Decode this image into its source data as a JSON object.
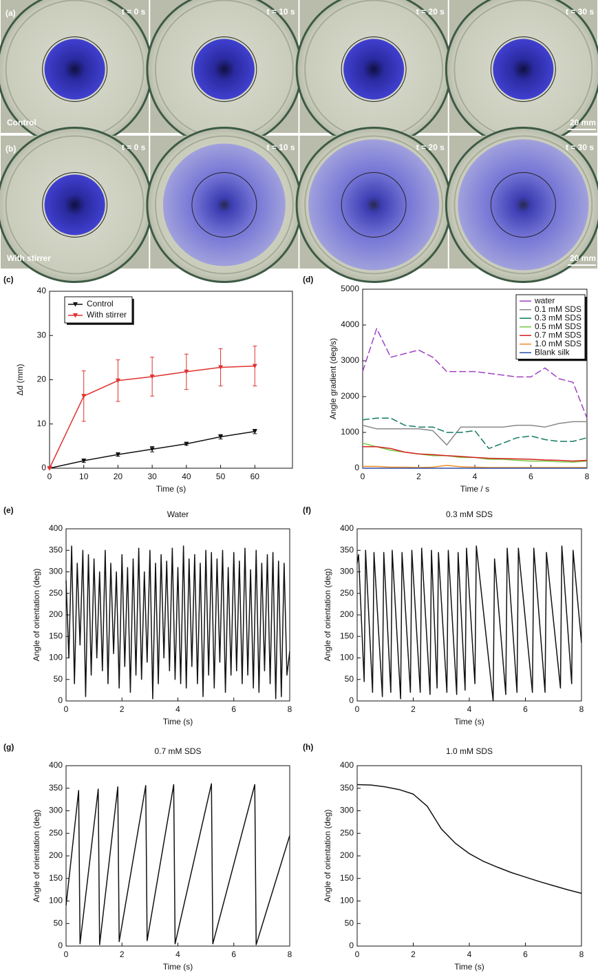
{
  "photos": {
    "rows": [
      {
        "label": "(a)",
        "name": "Control",
        "times": [
          "t = 0 s",
          "t = 10 s",
          "t = 20 s",
          "t = 30 s"
        ],
        "scale_bar": "20 mm"
      },
      {
        "label": "(b)",
        "name": "With stirrer",
        "times": [
          "t = 0 s",
          "t = 10 s",
          "t = 20 s",
          "t = 30 s"
        ],
        "scale_bar": "20 mm"
      }
    ]
  },
  "chart_data": [
    {
      "type": "line",
      "panel_label": "(c)",
      "xlabel": "Time (s)",
      "ylabel": "Δd (mm)",
      "x": [
        0,
        10,
        20,
        30,
        40,
        50,
        60
      ],
      "xlim": [
        0,
        71
      ],
      "xticks": [
        0,
        10,
        20,
        30,
        40,
        50,
        60
      ],
      "ylim": [
        0,
        40
      ],
      "yticks": [
        0,
        10,
        20,
        30,
        40
      ],
      "legend": "upper left",
      "series": [
        {
          "name": "Control",
          "color": "#111111",
          "marker": "triangle-down",
          "values": [
            0,
            1.7,
            3.1,
            4.3,
            5.5,
            7.1,
            8.3
          ],
          "errors": [
            0,
            0.4,
            0.4,
            0.6,
            0.3,
            0.5,
            0.5
          ]
        },
        {
          "name": "With stirrer",
          "color": "#e03030",
          "marker": "triangle-down",
          "values": [
            0,
            16.3,
            19.8,
            20.7,
            21.8,
            22.8,
            23.1
          ],
          "errors": [
            0,
            5.7,
            4.7,
            4.4,
            4.0,
            4.2,
            4.5
          ]
        }
      ]
    },
    {
      "type": "line",
      "panel_label": "(d)",
      "xlabel": "Time / s",
      "ylabel": "Angle gradient (deg/s)",
      "x": [
        0,
        0.5,
        1,
        1.5,
        2,
        2.5,
        3,
        3.5,
        4,
        4.5,
        5,
        5.5,
        6,
        6.5,
        7,
        7.5,
        8
      ],
      "xlim": [
        0,
        8
      ],
      "xticks": [
        0,
        2,
        4,
        6,
        8
      ],
      "ylim": [
        0,
        5000
      ],
      "yticks": [
        0,
        1000,
        2000,
        3000,
        4000,
        5000
      ],
      "legend": "upper right",
      "series": [
        {
          "name": "water",
          "color": "#a040c0",
          "dashed": true,
          "values": [
            2700,
            3900,
            3100,
            3200,
            3300,
            3100,
            2700,
            2700,
            2700,
            2650,
            2600,
            2550,
            2550,
            2800,
            2500,
            2400,
            1400
          ]
        },
        {
          "name": "0.1 mM SDS",
          "color": "#888888",
          "values": [
            1200,
            1100,
            1100,
            1100,
            1100,
            1050,
            650,
            1150,
            1150,
            1150,
            1150,
            1200,
            1200,
            1150,
            1250,
            1300,
            1300
          ]
        },
        {
          "name": "0.3 mM SDS",
          "color": "#137a63",
          "dashed": true,
          "values": [
            1350,
            1400,
            1400,
            1200,
            1150,
            1150,
            1000,
            1000,
            1050,
            550,
            700,
            850,
            900,
            800,
            750,
            750,
            850
          ]
        },
        {
          "name": "0.5 mM SDS",
          "color": "#7ac943",
          "values": [
            700,
            600,
            500,
            450,
            400,
            350,
            350,
            300,
            300,
            250,
            250,
            220,
            200,
            200,
            180,
            170,
            200
          ]
        },
        {
          "name": "0.7 mM SDS",
          "color": "#d42020",
          "values": [
            600,
            600,
            550,
            450,
            400,
            380,
            350,
            330,
            300,
            280,
            270,
            260,
            250,
            230,
            220,
            200,
            220
          ]
        },
        {
          "name": "1.0 mM SDS",
          "color": "#f08a24",
          "values": [
            50,
            50,
            30,
            30,
            20,
            30,
            80,
            40,
            30,
            20,
            20,
            20,
            20,
            20,
            20,
            20,
            20
          ]
        },
        {
          "name": "Blank silk",
          "color": "#2b4fa8",
          "values": [
            0,
            0,
            0,
            0,
            0,
            0,
            0,
            0,
            0,
            0,
            0,
            0,
            0,
            0,
            0,
            0,
            0
          ]
        }
      ]
    },
    {
      "type": "line",
      "panel_label": "(e)",
      "title": "Water",
      "xlabel": "Time (s)",
      "ylabel": "Angle of orientation (deg)",
      "x": [
        0,
        0.1,
        0.2,
        0.3,
        0.4,
        0.5,
        0.6,
        0.7,
        0.8,
        0.9,
        1,
        1.1,
        1.2,
        1.3,
        1.4,
        1.5,
        1.6,
        1.7,
        1.8,
        1.9,
        2,
        2.1,
        2.2,
        2.3,
        2.4,
        2.5,
        2.6,
        2.7,
        2.8,
        2.9,
        3,
        3.1,
        3.2,
        3.3,
        3.4,
        3.5,
        3.6,
        3.7,
        3.8,
        3.9,
        4,
        4.1,
        4.2,
        4.3,
        4.4,
        4.5,
        4.6,
        4.7,
        4.8,
        4.9,
        5,
        5.1,
        5.2,
        5.3,
        5.4,
        5.5,
        5.6,
        5.7,
        5.8,
        5.9,
        6,
        6.1,
        6.2,
        6.3,
        6.4,
        6.5,
        6.6,
        6.7,
        6.8,
        6.9,
        7,
        7.1,
        7.2,
        7.3,
        7.4,
        7.5,
        7.6,
        7.7,
        7.8,
        7.9,
        8
      ],
      "xlim": [
        0,
        8
      ],
      "xticks": [
        0,
        2,
        4,
        6,
        8
      ],
      "ylim": [
        0,
        400
      ],
      "yticks": [
        0,
        50,
        100,
        150,
        200,
        250,
        300,
        350,
        400
      ],
      "series": [
        {
          "color": "#111111",
          "values": [
            280,
            100,
            360,
            40,
            320,
            130,
            350,
            10,
            340,
            60,
            330,
            100,
            300,
            70,
            350,
            40,
            320,
            110,
            300,
            30,
            340,
            80,
            310,
            20,
            330,
            60,
            355,
            50,
            300,
            90,
            350,
            5,
            320,
            40,
            340,
            100,
            325,
            70,
            355,
            50,
            310,
            40,
            360,
            30,
            330,
            80,
            340,
            40,
            320,
            10,
            350,
            60,
            345,
            30,
            330,
            90,
            350,
            20,
            310,
            60,
            345,
            70,
            325,
            40,
            355,
            60,
            305,
            30,
            350,
            20,
            320,
            70,
            340,
            40,
            345,
            5,
            325,
            10,
            320,
            60,
            115
          ]
        }
      ]
    },
    {
      "type": "line",
      "panel_label": "(f)",
      "title": "0.3 mM SDS",
      "xlabel": "Time (s)",
      "ylabel": "Angle of orientation (deg)",
      "x": [
        0,
        0.05,
        0.25,
        0.3,
        0.55,
        0.6,
        0.9,
        0.95,
        1.2,
        1.25,
        1.55,
        1.6,
        1.9,
        1.95,
        2.25,
        2.3,
        2.6,
        2.65,
        2.85,
        2.9,
        3.2,
        3.25,
        3.55,
        3.6,
        3.85,
        3.9,
        4.2,
        4.25,
        4.85,
        4.9,
        5.3,
        5.35,
        5.7,
        5.75,
        6.25,
        6.3,
        6.7,
        6.75,
        7.25,
        7.3,
        7.65,
        7.7,
        8
      ],
      "xlim": [
        0,
        8
      ],
      "xticks": [
        0,
        2,
        4,
        6,
        8
      ],
      "ylim": [
        0,
        400
      ],
      "yticks": [
        0,
        50,
        100,
        150,
        200,
        250,
        300,
        350,
        400
      ],
      "series": [
        {
          "color": "#111111",
          "values": [
            320,
            340,
            45,
            350,
            20,
            345,
            10,
            345,
            20,
            350,
            5,
            345,
            20,
            350,
            20,
            355,
            15,
            350,
            30,
            345,
            20,
            350,
            15,
            345,
            25,
            355,
            40,
            360,
            0,
            330,
            15,
            355,
            20,
            355,
            20,
            355,
            20,
            345,
            30,
            360,
            40,
            350,
            135
          ]
        }
      ]
    },
    {
      "type": "line",
      "panel_label": "(g)",
      "title": "0.7 mM SDS",
      "xlabel": "Time (s)",
      "ylabel": "Angle of orientation (deg)",
      "x": [
        0,
        0.45,
        0.5,
        1.15,
        1.2,
        1.85,
        1.9,
        2.85,
        2.9,
        3.85,
        3.9,
        5.2,
        5.25,
        6.75,
        6.8,
        8
      ],
      "xlim": [
        0,
        8
      ],
      "xticks": [
        0,
        2,
        4,
        6,
        8
      ],
      "ylim": [
        0,
        400
      ],
      "yticks": [
        0,
        50,
        100,
        150,
        200,
        250,
        300,
        350,
        400
      ],
      "series": [
        {
          "color": "#111111",
          "values": [
            90,
            345,
            5,
            348,
            3,
            353,
            10,
            356,
            12,
            358,
            5,
            360,
            5,
            358,
            3,
            245
          ]
        }
      ]
    },
    {
      "type": "line",
      "panel_label": "(h)",
      "title": "1.0 mM SDS",
      "xlabel": "Time (s)",
      "ylabel": "Angle of orientation (deg)",
      "x": [
        0,
        0.5,
        1,
        1.5,
        2,
        2.5,
        3,
        3.5,
        4,
        4.5,
        5,
        5.5,
        6,
        6.5,
        7,
        7.5,
        8
      ],
      "xlim": [
        0,
        8
      ],
      "xticks": [
        0,
        2,
        4,
        6,
        8
      ],
      "ylim": [
        0,
        400
      ],
      "yticks": [
        0,
        50,
        100,
        150,
        200,
        250,
        300,
        350,
        400
      ],
      "series": [
        {
          "color": "#111111",
          "values": [
            358,
            357,
            353,
            347,
            337,
            310,
            260,
            228,
            205,
            188,
            175,
            163,
            153,
            143,
            134,
            125,
            117
          ]
        }
      ]
    }
  ]
}
